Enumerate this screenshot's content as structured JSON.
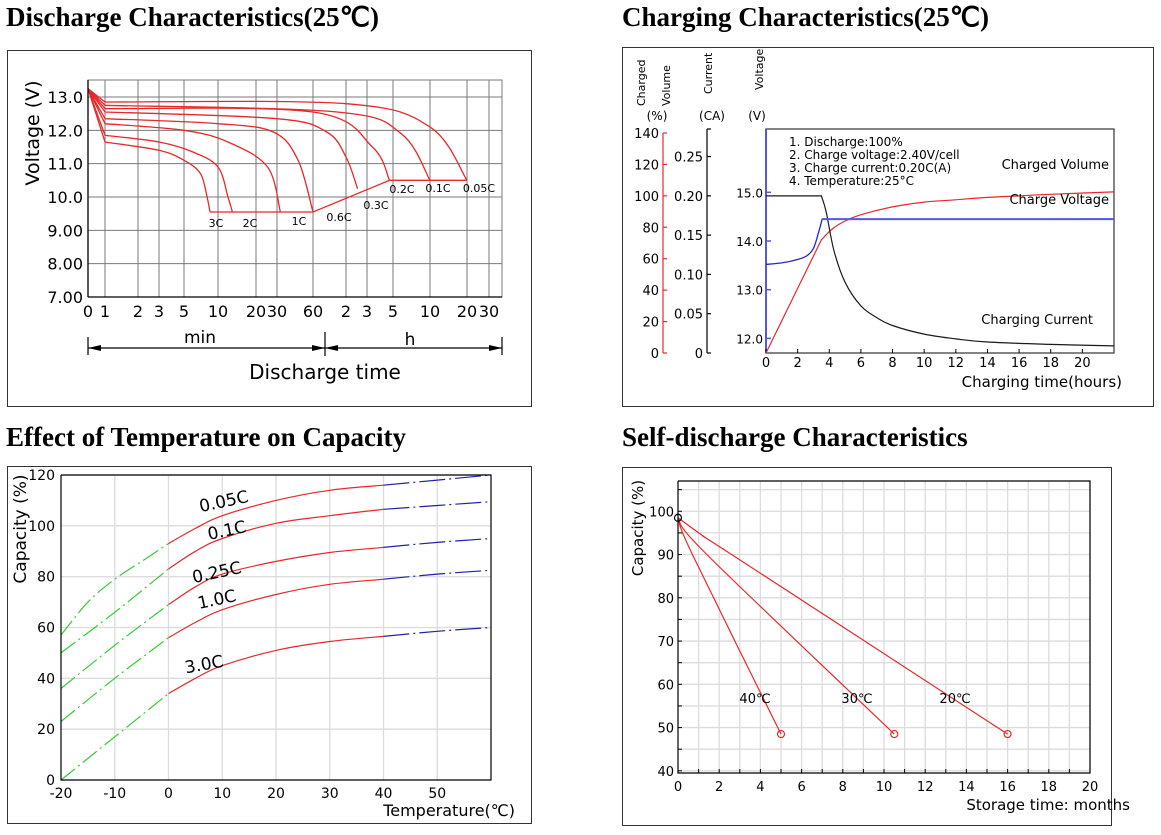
{
  "chart_data": [
    {
      "id": "discharge",
      "type": "line",
      "title": "Discharge Characteristics(25℃)",
      "xlabel": "Discharge time",
      "ylabel": "Voltage (V)",
      "x_scale": "log (minutes)",
      "x_ticks": [
        {
          "label": "0",
          "minutes": 0
        },
        {
          "label": "1",
          "minutes": 1
        },
        {
          "label": "2",
          "minutes": 2
        },
        {
          "label": "3",
          "minutes": 3
        },
        {
          "label": "5",
          "minutes": 5
        },
        {
          "label": "10",
          "minutes": 10
        },
        {
          "label": "20",
          "minutes": 20
        },
        {
          "label": "30",
          "minutes": 30
        },
        {
          "label": "60",
          "minutes": 60
        },
        {
          "label": "2",
          "minutes": 120
        },
        {
          "label": "3",
          "minutes": 180
        },
        {
          "label": "5",
          "minutes": 300
        },
        {
          "label": "10",
          "minutes": 600
        },
        {
          "label": "20",
          "minutes": 1200
        },
        {
          "label": "30",
          "minutes": 1800
        }
      ],
      "x_unit_labels": {
        "min": "min",
        "h": "h"
      },
      "y_ticks": [
        "7.00",
        "8.00",
        "9.00",
        "10.0",
        "11.0",
        "12.0",
        "13.0"
      ],
      "ylim": [
        7.0,
        13.5
      ],
      "grid": true,
      "series": [
        {
          "name": "3C",
          "points": [
            [
              0,
              13.25
            ],
            [
              1,
              11.65
            ],
            [
              3,
              11.4
            ],
            [
              5,
              11.1
            ],
            [
              7,
              10.7
            ],
            [
              8,
              10.0
            ],
            [
              8.5,
              9.55
            ]
          ]
        },
        {
          "name": "2C",
          "points": [
            [
              0,
              13.25
            ],
            [
              1,
              11.85
            ],
            [
              3,
              11.65
            ],
            [
              6,
              11.35
            ],
            [
              10,
              10.9
            ],
            [
              12,
              10.0
            ],
            [
              13,
              9.55
            ]
          ]
        },
        {
          "name": "1C",
          "points": [
            [
              0,
              13.25
            ],
            [
              1,
              12.2
            ],
            [
              5,
              12.0
            ],
            [
              12,
              11.65
            ],
            [
              25,
              10.9
            ],
            [
              32,
              9.55
            ]
          ]
        },
        {
          "name": "0.6C",
          "points": [
            [
              0,
              13.25
            ],
            [
              1,
              12.35
            ],
            [
              10,
              12.2
            ],
            [
              28,
              11.95
            ],
            [
              45,
              11.1
            ],
            [
              60,
              9.55
            ]
          ]
        },
        {
          "name": "0.3C",
          "points": [
            [
              0,
              13.25
            ],
            [
              1,
              12.55
            ],
            [
              30,
              12.35
            ],
            [
              80,
              11.95
            ],
            [
              120,
              11.2
            ],
            [
              150,
              10.25
            ]
          ]
        },
        {
          "name": "0.2C",
          "points": [
            [
              0,
              13.25
            ],
            [
              1,
              12.65
            ],
            [
              60,
              12.55
            ],
            [
              200,
              11.5
            ],
            [
              280,
              10.5
            ]
          ]
        },
        {
          "name": "0.1C",
          "points": [
            [
              0,
              13.25
            ],
            [
              1,
              12.75
            ],
            [
              100,
              12.55
            ],
            [
              350,
              11.9
            ],
            [
              600,
              10.5
            ]
          ]
        },
        {
          "name": "0.05C",
          "points": [
            [
              0,
              13.25
            ],
            [
              1,
              12.85
            ],
            [
              120,
              12.8
            ],
            [
              600,
              12.1
            ],
            [
              1200,
              10.5
            ]
          ]
        }
      ],
      "cutoff_line": {
        "points": [
          [
            8.5,
            9.55
          ],
          [
            60,
            9.55
          ],
          [
            280,
            10.5
          ],
          [
            1200,
            10.5
          ]
        ]
      },
      "series_colors": {
        "line": "#e8282a"
      }
    },
    {
      "id": "charging",
      "type": "line",
      "title": "Charging Characteristics(25℃)",
      "xlabel": "Charging time(hours)",
      "xlim": [
        0,
        22
      ],
      "x_ticks": [
        0,
        2,
        4,
        6,
        8,
        10,
        12,
        14,
        16,
        18,
        20
      ],
      "axes": [
        {
          "name": "Charged Volume (%)",
          "label_top": "Charged",
          "label_bottom": "Volume",
          "unit": "(%)",
          "range": [
            0,
            140
          ],
          "ticks": [
            0,
            20,
            40,
            60,
            80,
            100,
            120,
            140
          ],
          "color": "#e8282a"
        },
        {
          "name": "Current (CA)",
          "label": "Current",
          "unit": "(CA)",
          "range": [
            0,
            0.28
          ],
          "ticks": [
            "0",
            "0.05",
            "0.10",
            "0.15",
            "0.20",
            "0.25"
          ],
          "color": "#000000"
        },
        {
          "name": "Voltage (V)",
          "label": "Voltage",
          "unit": "(V)",
          "range": [
            11.7,
            16.3
          ],
          "ticks": [
            "12.0",
            "13.0",
            "14.0",
            "15.0"
          ],
          "color": "#5555e6"
        }
      ],
      "notes": [
        "1. Discharge:100%",
        "2. Charge voltage:2.40V/cell",
        "3. Charge current:0.20C(A)",
        "4. Temperature:25°C"
      ],
      "series": [
        {
          "name": "Charged Volume",
          "axis": 0,
          "color": "#e8282a",
          "points": [
            [
              0,
              0
            ],
            [
              3.5,
              72
            ],
            [
              4.2,
              79
            ],
            [
              5,
              84
            ],
            [
              6,
              88
            ],
            [
              8,
              93
            ],
            [
              10,
              96
            ],
            [
              12,
              97.5
            ],
            [
              14,
              99
            ],
            [
              16,
              100
            ],
            [
              18,
              101
            ],
            [
              22,
              102.5
            ]
          ]
        },
        {
          "name": "Charge Voltage",
          "axis": 2,
          "color": "#2626c8",
          "points": [
            [
              0,
              13.52
            ],
            [
              1,
              13.55
            ],
            [
              2,
              13.62
            ],
            [
              2.6,
              13.7
            ],
            [
              3.0,
              13.85
            ],
            [
              3.3,
              14.15
            ],
            [
              3.55,
              14.45
            ],
            [
              22,
              14.45
            ]
          ]
        },
        {
          "name": "Charging Current",
          "axis": 1,
          "color": "#1a1a1a",
          "points": [
            [
              0,
              0.2
            ],
            [
              3.5,
              0.2
            ],
            [
              3.8,
              0.18
            ],
            [
              4.3,
              0.13
            ],
            [
              5,
              0.09
            ],
            [
              6,
              0.06
            ],
            [
              7,
              0.045
            ],
            [
              8,
              0.035
            ],
            [
              10,
              0.024
            ],
            [
              12,
              0.018
            ],
            [
              14,
              0.014
            ],
            [
              18,
              0.011
            ],
            [
              22,
              0.009
            ]
          ]
        }
      ]
    },
    {
      "id": "temperature",
      "type": "line",
      "title": "Effect of Temperature on Capacity",
      "xlabel": "Temperature(℃)",
      "ylabel": "Capacity (%)",
      "xlim": [
        -20,
        60
      ],
      "ylim": [
        0,
        120
      ],
      "x_ticks": [
        -20,
        -10,
        0,
        10,
        20,
        30,
        40,
        50
      ],
      "y_ticks": [
        0,
        20,
        40,
        60,
        80,
        100,
        120
      ],
      "grid": true,
      "segment_colors": {
        "below_0": "#33cc33",
        "0_to_40": "#e8282a",
        "above_40": "#2020b0"
      },
      "series": [
        {
          "name": "0.05C",
          "points": [
            [
              -20,
              57
            ],
            [
              -15,
              70
            ],
            [
              -10,
              79
            ],
            [
              -5,
              86
            ],
            [
              0,
              93
            ],
            [
              5,
              99
            ],
            [
              10,
              104
            ],
            [
              20,
              110
            ],
            [
              30,
              114
            ],
            [
              40,
              116
            ],
            [
              50,
              118
            ],
            [
              60,
              120
            ]
          ]
        },
        {
          "name": "0.1C",
          "points": [
            [
              -20,
              50
            ],
            [
              -10,
              66
            ],
            [
              0,
              83
            ],
            [
              5,
              90
            ],
            [
              10,
              95
            ],
            [
              20,
              101
            ],
            [
              30,
              104
            ],
            [
              40,
              106.5
            ],
            [
              50,
              108
            ],
            [
              60,
              109.5
            ]
          ]
        },
        {
          "name": "0.25C",
          "points": [
            [
              -20,
              36
            ],
            [
              -10,
              53
            ],
            [
              0,
              69
            ],
            [
              5,
              76
            ],
            [
              10,
              81
            ],
            [
              20,
              86
            ],
            [
              30,
              89.5
            ],
            [
              40,
              91.5
            ],
            [
              50,
              93.5
            ],
            [
              60,
              95
            ]
          ]
        },
        {
          "name": "1.0C",
          "points": [
            [
              -20,
              23
            ],
            [
              -10,
              40
            ],
            [
              0,
              56
            ],
            [
              5,
              62
            ],
            [
              10,
              67
            ],
            [
              20,
              73
            ],
            [
              30,
              77
            ],
            [
              40,
              79
            ],
            [
              50,
              81
            ],
            [
              60,
              82.5
            ]
          ]
        },
        {
          "name": "3.0C",
          "points": [
            [
              -20,
              0
            ],
            [
              -10,
              17
            ],
            [
              0,
              34
            ],
            [
              5,
              40
            ],
            [
              10,
              45
            ],
            [
              20,
              51
            ],
            [
              30,
              54.5
            ],
            [
              40,
              56.5
            ],
            [
              50,
              58.5
            ],
            [
              60,
              60
            ]
          ]
        }
      ]
    },
    {
      "id": "self_discharge",
      "type": "line",
      "title": "Self-discharge Characteristics",
      "xlabel": "Storage time: months",
      "ylabel": "Capacity (%)",
      "xlim": [
        0,
        20
      ],
      "ylim": [
        39.5,
        107
      ],
      "x_ticks": [
        0,
        2,
        4,
        6,
        8,
        10,
        12,
        14,
        16,
        18,
        20
      ],
      "y_ticks": [
        40,
        50,
        60,
        70,
        80,
        90,
        100
      ],
      "grid": true,
      "start_point": [
        0,
        98.5
      ],
      "series": [
        {
          "name": "40℃",
          "color": "#e8282a",
          "points": [
            [
              0,
              98.5
            ],
            [
              0.7,
              90
            ],
            [
              5.0,
              48.5
            ]
          ]
        },
        {
          "name": "30℃",
          "color": "#e8282a",
          "points": [
            [
              0,
              98.5
            ],
            [
              1.4,
              90
            ],
            [
              10.5,
              48.5
            ]
          ]
        },
        {
          "name": "20℃",
          "color": "#e8282a",
          "points": [
            [
              0,
              98.5
            ],
            [
              1.3,
              94
            ],
            [
              2.6,
              90
            ],
            [
              16.0,
              48.5
            ]
          ]
        }
      ]
    }
  ]
}
